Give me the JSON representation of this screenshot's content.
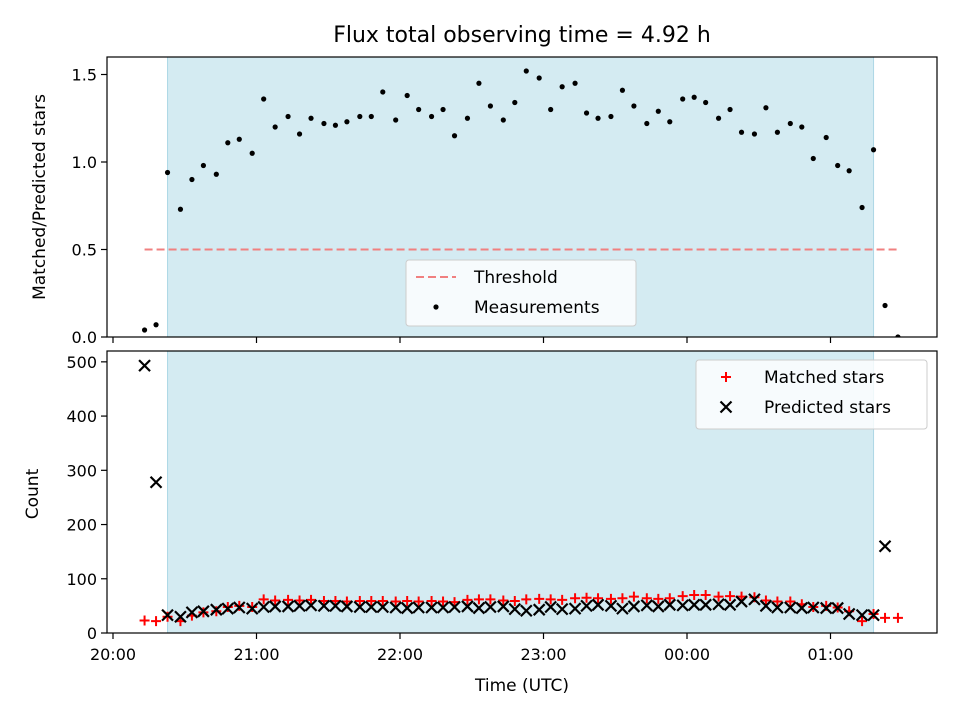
{
  "title": "Flux total observing time = 4.92 h",
  "xlabel": "Time (UTC)",
  "xticks": [
    "20:00",
    "21:00",
    "22:00",
    "23:00",
    "00:00",
    "01:00"
  ],
  "colors": {
    "shade": "#d4ebf2",
    "shade_edge": "#add8e6",
    "threshold": "#f08080",
    "measurement": "#000000",
    "matched": "#ff0000",
    "predicted": "#000000"
  },
  "chart_data": [
    {
      "type": "scatter",
      "ylabel": "Matched/Predicted stars",
      "ylim": [
        0,
        1.6
      ],
      "yticks": [
        "0.0",
        "0.5",
        "1.0",
        "1.5"
      ],
      "x_unit": "hours since 20:00 UTC",
      "shaded_interval": [
        0.38,
        5.3
      ],
      "threshold": {
        "label": "Threshold",
        "value": 0.5,
        "x_range": [
          0.22,
          5.47
        ]
      },
      "legend": {
        "position": "lower-center",
        "entries": [
          "Threshold",
          "Measurements"
        ]
      },
      "series": [
        {
          "name": "Measurements",
          "points": [
            [
              0.22,
              0.04
            ],
            [
              0.3,
              0.07
            ],
            [
              0.38,
              0.94
            ],
            [
              0.47,
              0.73
            ],
            [
              0.55,
              0.9
            ],
            [
              0.63,
              0.98
            ],
            [
              0.72,
              0.93
            ],
            [
              0.8,
              1.11
            ],
            [
              0.88,
              1.13
            ],
            [
              0.97,
              1.05
            ],
            [
              1.05,
              1.36
            ],
            [
              1.13,
              1.2
            ],
            [
              1.22,
              1.26
            ],
            [
              1.3,
              1.16
            ],
            [
              1.38,
              1.25
            ],
            [
              1.47,
              1.22
            ],
            [
              1.55,
              1.21
            ],
            [
              1.63,
              1.23
            ],
            [
              1.72,
              1.26
            ],
            [
              1.8,
              1.26
            ],
            [
              1.88,
              1.4
            ],
            [
              1.97,
              1.24
            ],
            [
              2.05,
              1.38
            ],
            [
              2.13,
              1.3
            ],
            [
              2.22,
              1.26
            ],
            [
              2.3,
              1.3
            ],
            [
              2.38,
              1.15
            ],
            [
              2.47,
              1.25
            ],
            [
              2.55,
              1.45
            ],
            [
              2.63,
              1.32
            ],
            [
              2.72,
              1.24
            ],
            [
              2.8,
              1.34
            ],
            [
              2.88,
              1.52
            ],
            [
              2.97,
              1.48
            ],
            [
              3.05,
              1.3
            ],
            [
              3.13,
              1.43
            ],
            [
              3.22,
              1.45
            ],
            [
              3.3,
              1.28
            ],
            [
              3.38,
              1.25
            ],
            [
              3.47,
              1.26
            ],
            [
              3.55,
              1.41
            ],
            [
              3.63,
              1.32
            ],
            [
              3.72,
              1.22
            ],
            [
              3.8,
              1.29
            ],
            [
              3.88,
              1.23
            ],
            [
              3.97,
              1.36
            ],
            [
              4.05,
              1.37
            ],
            [
              4.13,
              1.34
            ],
            [
              4.22,
              1.25
            ],
            [
              4.3,
              1.3
            ],
            [
              4.38,
              1.17
            ],
            [
              4.47,
              1.16
            ],
            [
              4.55,
              1.31
            ],
            [
              4.63,
              1.17
            ],
            [
              4.72,
              1.22
            ],
            [
              4.8,
              1.2
            ],
            [
              4.88,
              1.02
            ],
            [
              4.97,
              1.14
            ],
            [
              5.05,
              0.98
            ],
            [
              5.13,
              0.95
            ],
            [
              5.22,
              0.74
            ],
            [
              5.3,
              1.07
            ],
            [
              5.38,
              0.18
            ],
            [
              5.47,
              0.0
            ]
          ]
        }
      ]
    },
    {
      "type": "scatter",
      "ylabel": "Count",
      "ylim": [
        0,
        520
      ],
      "yticks": [
        "0",
        "100",
        "200",
        "300",
        "400",
        "500"
      ],
      "x_unit": "hours since 20:00 UTC",
      "shaded_interval": [
        0.38,
        5.3
      ],
      "legend": {
        "position": "top-right",
        "entries": [
          "Matched stars",
          "Predicted stars"
        ]
      },
      "series": [
        {
          "name": "Matched stars",
          "marker": "plus",
          "points": [
            [
              0.22,
              23
            ],
            [
              0.3,
              22
            ],
            [
              0.38,
              30
            ],
            [
              0.47,
              22
            ],
            [
              0.55,
              32
            ],
            [
              0.63,
              38
            ],
            [
              0.72,
              40
            ],
            [
              0.8,
              48
            ],
            [
              0.88,
              50
            ],
            [
              0.97,
              48
            ],
            [
              1.05,
              62
            ],
            [
              1.13,
              60
            ],
            [
              1.22,
              61
            ],
            [
              1.3,
              60
            ],
            [
              1.38,
              61
            ],
            [
              1.47,
              59
            ],
            [
              1.55,
              59
            ],
            [
              1.63,
              58
            ],
            [
              1.72,
              59
            ],
            [
              1.8,
              59
            ],
            [
              1.88,
              59
            ],
            [
              1.97,
              58
            ],
            [
              2.05,
              59
            ],
            [
              2.13,
              58
            ],
            [
              2.22,
              59
            ],
            [
              2.3,
              58
            ],
            [
              2.38,
              57
            ],
            [
              2.47,
              61
            ],
            [
              2.55,
              62
            ],
            [
              2.63,
              62
            ],
            [
              2.72,
              60
            ],
            [
              2.8,
              59
            ],
            [
              2.88,
              62
            ],
            [
              2.97,
              63
            ],
            [
              3.05,
              62
            ],
            [
              3.13,
              61
            ],
            [
              3.22,
              64
            ],
            [
              3.3,
              65
            ],
            [
              3.38,
              64
            ],
            [
              3.47,
              63
            ],
            [
              3.55,
              64
            ],
            [
              3.63,
              67
            ],
            [
              3.72,
              64
            ],
            [
              3.8,
              63
            ],
            [
              3.88,
              64
            ],
            [
              3.97,
              68
            ],
            [
              4.05,
              70
            ],
            [
              4.13,
              70
            ],
            [
              4.22,
              67
            ],
            [
              4.3,
              68
            ],
            [
              4.38,
              67
            ],
            [
              4.47,
              66
            ],
            [
              4.55,
              60
            ],
            [
              4.63,
              58
            ],
            [
              4.72,
              58
            ],
            [
              4.8,
              53
            ],
            [
              4.88,
              48
            ],
            [
              4.97,
              50
            ],
            [
              5.05,
              47
            ],
            [
              5.13,
              40
            ],
            [
              5.22,
              22
            ],
            [
              5.3,
              35
            ],
            [
              5.38,
              28
            ],
            [
              5.47,
              28
            ]
          ]
        },
        {
          "name": "Predicted stars",
          "marker": "x",
          "points": [
            [
              0.22,
              493
            ],
            [
              0.3,
              278
            ],
            [
              0.38,
              33
            ],
            [
              0.47,
              30
            ],
            [
              0.55,
              38
            ],
            [
              0.63,
              40
            ],
            [
              0.72,
              43
            ],
            [
              0.8,
              45
            ],
            [
              0.88,
              47
            ],
            [
              0.97,
              45
            ],
            [
              1.05,
              48
            ],
            [
              1.13,
              49
            ],
            [
              1.22,
              49
            ],
            [
              1.3,
              50
            ],
            [
              1.38,
              51
            ],
            [
              1.47,
              50
            ],
            [
              1.55,
              50
            ],
            [
              1.63,
              49
            ],
            [
              1.72,
              48
            ],
            [
              1.8,
              48
            ],
            [
              1.88,
              48
            ],
            [
              1.97,
              47
            ],
            [
              2.05,
              46
            ],
            [
              2.13,
              47
            ],
            [
              2.22,
              47
            ],
            [
              2.3,
              47
            ],
            [
              2.38,
              48
            ],
            [
              2.47,
              49
            ],
            [
              2.55,
              46
            ],
            [
              2.63,
              48
            ],
            [
              2.72,
              49
            ],
            [
              2.8,
              44
            ],
            [
              2.88,
              41
            ],
            [
              2.97,
              43
            ],
            [
              3.05,
              48
            ],
            [
              3.13,
              44
            ],
            [
              3.22,
              45
            ],
            [
              3.3,
              50
            ],
            [
              3.38,
              52
            ],
            [
              3.47,
              50
            ],
            [
              3.55,
              45
            ],
            [
              3.63,
              49
            ],
            [
              3.72,
              51
            ],
            [
              3.8,
              49
            ],
            [
              3.88,
              52
            ],
            [
              3.97,
              51
            ],
            [
              4.05,
              52
            ],
            [
              4.13,
              52
            ],
            [
              4.22,
              53
            ],
            [
              4.3,
              52
            ],
            [
              4.38,
              58
            ],
            [
              4.47,
              62
            ],
            [
              4.55,
              50
            ],
            [
              4.63,
              47
            ],
            [
              4.72,
              47
            ],
            [
              4.8,
              46
            ],
            [
              4.88,
              47
            ],
            [
              4.97,
              46
            ],
            [
              5.05,
              46
            ],
            [
              5.13,
              35
            ],
            [
              5.22,
              33
            ],
            [
              5.3,
              33
            ],
            [
              5.38,
              160
            ]
          ]
        }
      ]
    }
  ]
}
